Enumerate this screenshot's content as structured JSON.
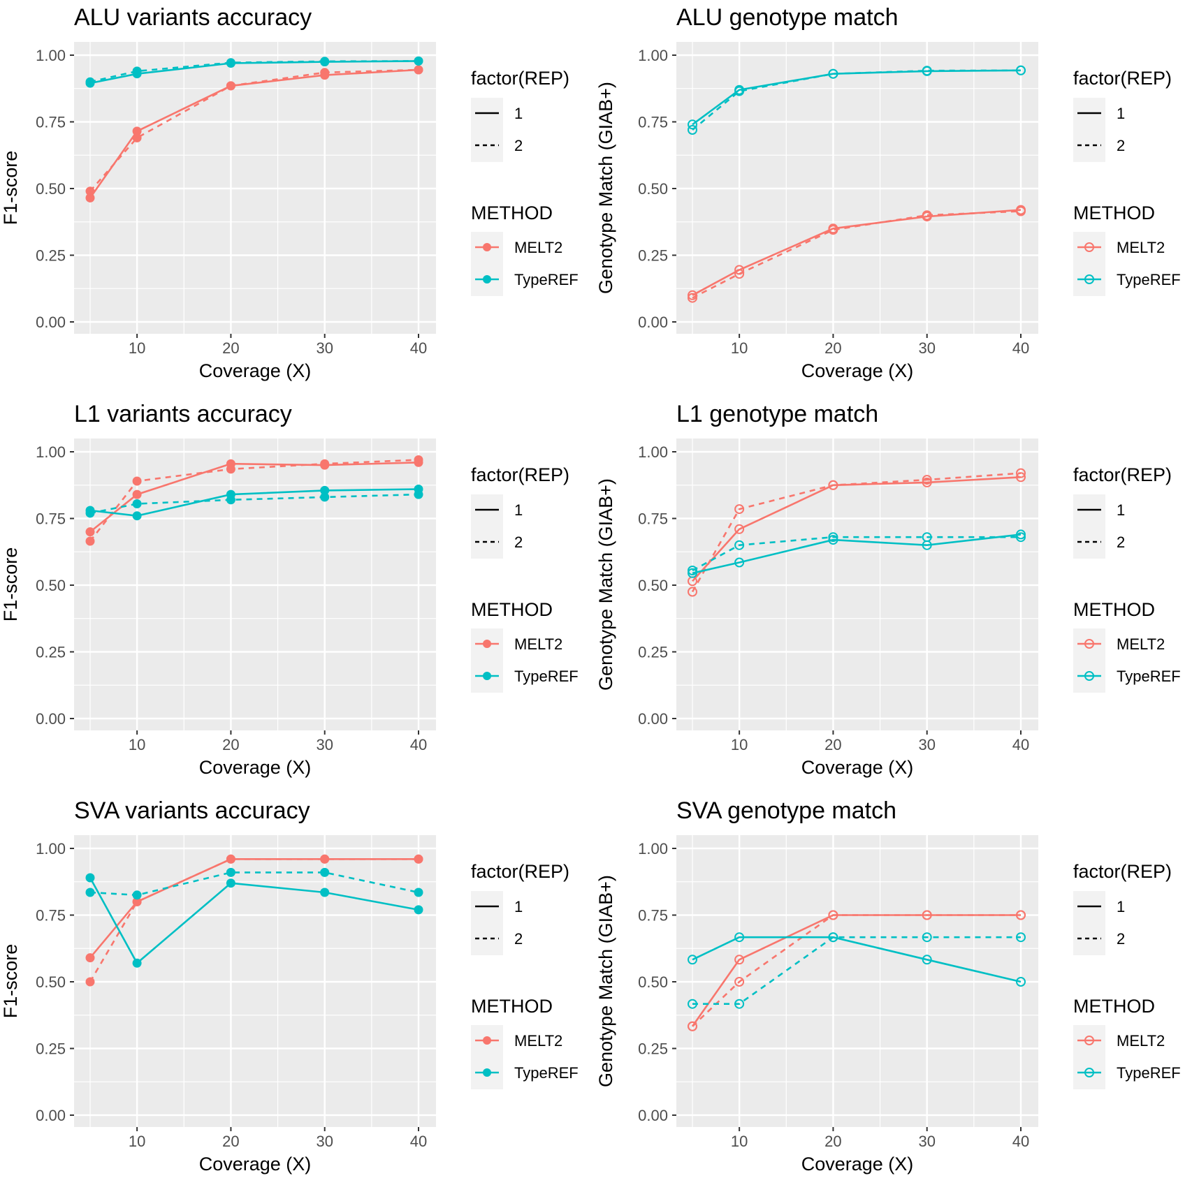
{
  "colors": {
    "MELT2": "#F8766D",
    "TypeREF": "#00BFC4",
    "panel_bg": "#EBEBEB",
    "grid": "#FFFFFF",
    "legend_key_bg": "#F2F2F2",
    "axis_text": "#4D4D4D",
    "title_text": "#000000"
  },
  "legend": {
    "rep_title": "factor(REP)",
    "rep_items": [
      "1",
      "2"
    ],
    "method_title": "METHOD",
    "method_items": [
      "MELT2",
      "TypeREF"
    ]
  },
  "chart_data": [
    {
      "type": "line",
      "title": "ALU variants accuracy",
      "xlabel": "Coverage (X)",
      "ylabel": "F1-score",
      "marker": "filled",
      "xlim": [
        5,
        40
      ],
      "ylim": [
        0,
        1
      ],
      "x_ticks": [
        10,
        20,
        30,
        40
      ],
      "y_ticks": [
        "0.00",
        "0.25",
        "0.50",
        "0.75",
        "1.00"
      ],
      "x": [
        5,
        10,
        20,
        30,
        40
      ],
      "series": [
        {
          "method": "MELT2",
          "rep": "1",
          "values": [
            0.465,
            0.715,
            0.885,
            0.925,
            0.945
          ]
        },
        {
          "method": "MELT2",
          "rep": "2",
          "values": [
            0.49,
            0.69,
            0.885,
            0.935,
            0.945
          ]
        },
        {
          "method": "TypeREF",
          "rep": "1",
          "values": [
            0.895,
            0.93,
            0.97,
            0.975,
            0.978
          ]
        },
        {
          "method": "TypeREF",
          "rep": "2",
          "values": [
            0.9,
            0.94,
            0.972,
            0.977,
            0.978
          ]
        }
      ]
    },
    {
      "type": "line",
      "title": "ALU genotype match",
      "xlabel": "Coverage (X)",
      "ylabel": "Genotype Match (GIAB+)",
      "marker": "open",
      "xlim": [
        5,
        40
      ],
      "ylim": [
        0,
        1
      ],
      "x_ticks": [
        10,
        20,
        30,
        40
      ],
      "y_ticks": [
        "0.00",
        "0.25",
        "0.50",
        "0.75",
        "1.00"
      ],
      "x": [
        5,
        10,
        20,
        30,
        40
      ],
      "series": [
        {
          "method": "MELT2",
          "rep": "1",
          "values": [
            0.1,
            0.195,
            0.35,
            0.395,
            0.42
          ]
        },
        {
          "method": "MELT2",
          "rep": "2",
          "values": [
            0.09,
            0.18,
            0.345,
            0.4,
            0.415
          ]
        },
        {
          "method": "TypeREF",
          "rep": "1",
          "values": [
            0.74,
            0.87,
            0.93,
            0.94,
            0.943
          ]
        },
        {
          "method": "TypeREF",
          "rep": "2",
          "values": [
            0.72,
            0.865,
            0.93,
            0.942,
            0.943
          ]
        }
      ]
    },
    {
      "type": "line",
      "title": "L1 variants accuracy",
      "xlabel": "Coverage (X)",
      "ylabel": "F1-score",
      "marker": "filled",
      "xlim": [
        5,
        40
      ],
      "ylim": [
        0,
        1
      ],
      "x_ticks": [
        10,
        20,
        30,
        40
      ],
      "y_ticks": [
        "0.00",
        "0.25",
        "0.50",
        "0.75",
        "1.00"
      ],
      "x": [
        5,
        10,
        20,
        30,
        40
      ],
      "series": [
        {
          "method": "MELT2",
          "rep": "1",
          "values": [
            0.7,
            0.84,
            0.955,
            0.95,
            0.96
          ]
        },
        {
          "method": "MELT2",
          "rep": "2",
          "values": [
            0.665,
            0.89,
            0.935,
            0.955,
            0.97
          ]
        },
        {
          "method": "TypeREF",
          "rep": "1",
          "values": [
            0.78,
            0.76,
            0.84,
            0.855,
            0.86
          ]
        },
        {
          "method": "TypeREF",
          "rep": "2",
          "values": [
            0.77,
            0.805,
            0.82,
            0.83,
            0.84
          ]
        }
      ]
    },
    {
      "type": "line",
      "title": "L1 genotype match",
      "xlabel": "Coverage (X)",
      "ylabel": "Genotype Match (GIAB+)",
      "marker": "open",
      "xlim": [
        5,
        40
      ],
      "ylim": [
        0,
        1
      ],
      "x_ticks": [
        10,
        20,
        30,
        40
      ],
      "y_ticks": [
        "0.00",
        "0.25",
        "0.50",
        "0.75",
        "1.00"
      ],
      "x": [
        5,
        10,
        20,
        30,
        40
      ],
      "series": [
        {
          "method": "MELT2",
          "rep": "1",
          "values": [
            0.515,
            0.71,
            0.875,
            0.885,
            0.905
          ]
        },
        {
          "method": "MELT2",
          "rep": "2",
          "values": [
            0.475,
            0.785,
            0.875,
            0.895,
            0.92
          ]
        },
        {
          "method": "TypeREF",
          "rep": "1",
          "values": [
            0.545,
            0.585,
            0.67,
            0.65,
            0.69
          ]
        },
        {
          "method": "TypeREF",
          "rep": "2",
          "values": [
            0.555,
            0.65,
            0.68,
            0.68,
            0.68
          ]
        }
      ]
    },
    {
      "type": "line",
      "title": "SVA variants accuracy",
      "xlabel": "Coverage (X)",
      "ylabel": "F1-score",
      "marker": "filled",
      "xlim": [
        5,
        40
      ],
      "ylim": [
        0,
        1
      ],
      "x_ticks": [
        10,
        20,
        30,
        40
      ],
      "y_ticks": [
        "0.00",
        "0.25",
        "0.50",
        "0.75",
        "1.00"
      ],
      "x": [
        5,
        10,
        20,
        30,
        40
      ],
      "series": [
        {
          "method": "MELT2",
          "rep": "1",
          "values": [
            0.59,
            0.8,
            0.96,
            0.96,
            0.96
          ]
        },
        {
          "method": "MELT2",
          "rep": "2",
          "values": [
            0.5,
            0.8,
            0.96,
            0.96,
            0.96
          ]
        },
        {
          "method": "TypeREF",
          "rep": "1",
          "values": [
            0.89,
            0.57,
            0.87,
            0.835,
            0.77
          ]
        },
        {
          "method": "TypeREF",
          "rep": "2",
          "values": [
            0.835,
            0.825,
            0.91,
            0.91,
            0.835
          ]
        }
      ]
    },
    {
      "type": "line",
      "title": "SVA genotype match",
      "xlabel": "Coverage (X)",
      "ylabel": "Genotype Match (GIAB+)",
      "marker": "open",
      "xlim": [
        5,
        40
      ],
      "ylim": [
        0,
        1
      ],
      "x_ticks": [
        10,
        20,
        30,
        40
      ],
      "y_ticks": [
        "0.00",
        "0.25",
        "0.50",
        "0.75",
        "1.00"
      ],
      "x": [
        5,
        10,
        20,
        30,
        40
      ],
      "series": [
        {
          "method": "MELT2",
          "rep": "1",
          "values": [
            0.333,
            0.583,
            0.75,
            0.75,
            0.75
          ]
        },
        {
          "method": "MELT2",
          "rep": "2",
          "values": [
            0.333,
            0.5,
            0.75,
            0.75,
            0.75
          ]
        },
        {
          "method": "TypeREF",
          "rep": "1",
          "values": [
            0.583,
            0.667,
            0.667,
            0.583,
            0.5
          ]
        },
        {
          "method": "TypeREF",
          "rep": "2",
          "values": [
            0.417,
            0.417,
            0.667,
            0.667,
            0.667
          ]
        }
      ]
    }
  ]
}
